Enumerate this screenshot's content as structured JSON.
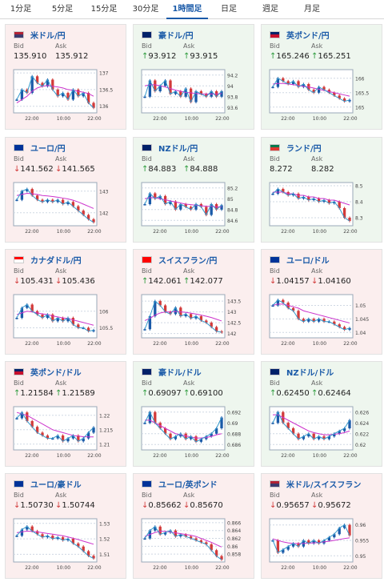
{
  "tabs": [
    "1分足",
    "5分足",
    "15分足",
    "30分足",
    "1時間足",
    "日足",
    "週足",
    "月足"
  ],
  "active_tab": 4,
  "labels": {
    "bid": "Bid",
    "ask": "Ask"
  },
  "cards": [
    {
      "pair": "米ドル/円",
      "flag": "us",
      "trend": "up",
      "bg": "down",
      "arrow": "",
      "bid": "135.910",
      "ask": "135.912",
      "chart_data": {
        "type": "line",
        "x_ticks": [
          "22:00",
          "10:00",
          "22:00"
        ],
        "y_ticks": [
          "137",
          "136.5",
          "136"
        ],
        "ylim": [
          135.8,
          137.1
        ],
        "close": [
          136.2,
          136.5,
          136.4,
          136.9,
          136.7,
          136.6,
          136.8,
          136.5,
          136.3,
          136.4,
          136.2,
          136.5,
          136.3,
          136.4,
          136.1,
          135.95
        ],
        "ma": [
          136.1,
          136.2,
          136.3,
          136.45,
          136.55,
          136.6,
          136.62,
          136.6,
          136.58,
          136.55,
          136.5,
          136.48,
          136.45,
          136.42,
          136.38,
          136.3
        ]
      }
    },
    {
      "pair": "豪ドル/円",
      "flag": "au",
      "trend": "up",
      "bg": "up",
      "arrow": "↑",
      "bid": "93.912",
      "ask": "93.915",
      "chart_data": {
        "type": "line",
        "x_ticks": [
          "22:00",
          "10:00",
          "22:00"
        ],
        "y_ticks": [
          "94.2",
          "94",
          "93.8",
          "93.6"
        ],
        "ylim": [
          93.5,
          94.3
        ],
        "close": [
          93.8,
          94.1,
          93.9,
          94.0,
          94.1,
          93.85,
          93.9,
          93.8,
          93.95,
          93.7,
          93.9,
          93.85,
          93.8,
          93.9,
          93.8,
          93.9
        ],
        "ma": [
          94.0,
          94.02,
          94.02,
          94.0,
          93.98,
          93.95,
          93.92,
          93.9,
          93.88,
          93.87,
          93.86,
          93.85,
          93.85,
          93.85,
          93.85,
          93.86
        ]
      }
    },
    {
      "pair": "英ポンド/円",
      "flag": "gb",
      "trend": "up",
      "bg": "up",
      "arrow": "↑",
      "bid": "165.246",
      "ask": "165.251",
      "chart_data": {
        "type": "line",
        "x_ticks": [
          "22:00",
          "10:00",
          "22:00"
        ],
        "y_ticks": [
          "166",
          "165.5",
          "165"
        ],
        "ylim": [
          164.8,
          166.3
        ],
        "close": [
          165.7,
          166.0,
          165.9,
          165.8,
          165.9,
          165.7,
          165.8,
          165.6,
          165.5,
          165.7,
          165.6,
          165.5,
          165.4,
          165.3,
          165.2,
          165.25
        ],
        "ma": [
          165.8,
          165.82,
          165.82,
          165.8,
          165.78,
          165.75,
          165.72,
          165.7,
          165.66,
          165.62,
          165.58,
          165.54,
          165.5,
          165.46,
          165.42,
          165.38
        ]
      }
    },
    {
      "pair": "ユーロ/円",
      "flag": "eu",
      "trend": "down",
      "bg": "down",
      "arrow": "↓",
      "bid": "141.562",
      "ask": "141.565",
      "chart_data": {
        "type": "line",
        "x_ticks": [
          "22:00",
          "10:00",
          "22:00"
        ],
        "y_ticks": [
          "143",
          "142"
        ],
        "ylim": [
          141.4,
          143.4
        ],
        "close": [
          142.6,
          143.0,
          143.1,
          142.8,
          142.6,
          142.5,
          142.6,
          142.5,
          142.6,
          142.4,
          142.5,
          142.3,
          142.1,
          141.9,
          141.7,
          141.56
        ],
        "ma": [
          142.8,
          142.85,
          142.9,
          142.88,
          142.85,
          142.8,
          142.78,
          142.75,
          142.72,
          142.68,
          142.64,
          142.58,
          142.5,
          142.4,
          142.3,
          142.2
        ]
      }
    },
    {
      "pair": "NZドル/円",
      "flag": "nz",
      "trend": "up",
      "bg": "up",
      "arrow": "↑",
      "bid": "84.883",
      "ask": "84.888",
      "chart_data": {
        "type": "line",
        "x_ticks": [
          "22:00",
          "10:00",
          "22:00"
        ],
        "y_ticks": [
          "85.2",
          "85",
          "84.8",
          "84.6"
        ],
        "ylim": [
          84.5,
          85.3
        ],
        "close": [
          84.9,
          85.1,
          85.0,
          85.05,
          84.9,
          84.95,
          84.8,
          84.9,
          84.85,
          84.8,
          84.9,
          84.85,
          84.7,
          84.9,
          84.8,
          84.88
        ],
        "ma": [
          85.0,
          85.02,
          85.02,
          85.0,
          84.98,
          84.96,
          84.94,
          84.92,
          84.9,
          84.89,
          84.88,
          84.87,
          84.86,
          84.86,
          84.85,
          84.85
        ]
      }
    },
    {
      "pair": "ランド/円",
      "flag": "za",
      "trend": "up",
      "bg": "up",
      "arrow": "",
      "bid": "8.272",
      "ask": "8.282",
      "chart_data": {
        "type": "line",
        "x_ticks": [
          "22:00",
          "10:00",
          "22:00"
        ],
        "y_ticks": [
          "8.5",
          "8.4",
          "8.3"
        ],
        "ylim": [
          8.25,
          8.52
        ],
        "close": [
          8.45,
          8.48,
          8.46,
          8.44,
          8.45,
          8.42,
          8.43,
          8.41,
          8.42,
          8.4,
          8.41,
          8.39,
          8.4,
          8.36,
          8.3,
          8.28
        ],
        "ma": [
          8.46,
          8.46,
          8.46,
          8.45,
          8.45,
          8.44,
          8.44,
          8.43,
          8.43,
          8.42,
          8.42,
          8.41,
          8.41,
          8.4,
          8.39,
          8.38
        ]
      }
    },
    {
      "pair": "カナダドル/円",
      "flag": "ca",
      "trend": "down",
      "bg": "down",
      "arrow": "↓",
      "bid": "105.431",
      "ask": "105.436",
      "chart_data": {
        "type": "line",
        "x_ticks": [
          "22:00",
          "10:00",
          "22:00"
        ],
        "y_ticks": [
          "106",
          "105.5"
        ],
        "ylim": [
          105.2,
          106.5
        ],
        "close": [
          105.8,
          106.1,
          106.2,
          106.0,
          105.9,
          105.8,
          105.9,
          105.7,
          105.8,
          105.7,
          105.8,
          105.6,
          105.5,
          105.5,
          105.4,
          105.43
        ],
        "ma": [
          105.9,
          105.95,
          106.0,
          105.98,
          105.95,
          105.92,
          105.9,
          105.86,
          105.83,
          105.8,
          105.78,
          105.74,
          105.7,
          105.66,
          105.62,
          105.58
        ]
      }
    },
    {
      "pair": "スイスフラン/円",
      "flag": "ch",
      "trend": "up",
      "bg": "down",
      "arrow": "↑",
      "bid": "142.061",
      "ask": "142.077",
      "chart_data": {
        "type": "line",
        "x_ticks": [
          "22:00",
          "10:00",
          "22:00"
        ],
        "y_ticks": [
          "143.5",
          "143",
          "142.5",
          "142"
        ],
        "ylim": [
          141.8,
          143.8
        ],
        "close": [
          142.2,
          142.8,
          143.5,
          143.3,
          143.0,
          142.9,
          143.2,
          142.8,
          142.9,
          142.7,
          142.8,
          142.6,
          142.5,
          142.3,
          142.1,
          142.06
        ],
        "ma": [
          142.6,
          142.7,
          142.85,
          142.95,
          143.0,
          143.0,
          143.02,
          143.0,
          142.98,
          142.94,
          142.9,
          142.85,
          142.8,
          142.74,
          142.66,
          142.58
        ]
      }
    },
    {
      "pair": "ユーロ/ドル",
      "flag": "eu",
      "trend": "down",
      "bg": "down",
      "arrow": "↓",
      "bid": "1.04157",
      "ask": "1.04160",
      "chart_data": {
        "type": "line",
        "x_ticks": [
          "22:00",
          "10:00",
          "22:00"
        ],
        "y_ticks": [
          "1.05",
          "1.045",
          "1.04"
        ],
        "ylim": [
          1.038,
          1.054
        ],
        "close": [
          1.05,
          1.052,
          1.051,
          1.049,
          1.048,
          1.045,
          1.044,
          1.045,
          1.044,
          1.045,
          1.044,
          1.044,
          1.043,
          1.042,
          1.041,
          1.0416
        ],
        "ma": [
          1.05,
          1.0505,
          1.0505,
          1.05,
          1.0495,
          1.049,
          1.048,
          1.0475,
          1.047,
          1.0465,
          1.046,
          1.0455,
          1.045,
          1.0445,
          1.044,
          1.0435
        ]
      }
    },
    {
      "pair": "英ポンド/ドル",
      "flag": "gb",
      "trend": "up",
      "bg": "down",
      "arrow": "↑",
      "bid": "1.21584",
      "ask": "1.21589",
      "chart_data": {
        "type": "line",
        "x_ticks": [
          "22:00",
          "10:00",
          "22:00"
        ],
        "y_ticks": [
          "1.22",
          "1.215",
          "1.21"
        ],
        "ylim": [
          1.208,
          1.223
        ],
        "close": [
          1.219,
          1.221,
          1.218,
          1.216,
          1.214,
          1.213,
          1.212,
          1.212,
          1.213,
          1.211,
          1.212,
          1.213,
          1.211,
          1.212,
          1.214,
          1.2158
        ],
        "ma": [
          1.221,
          1.2205,
          1.22,
          1.219,
          1.218,
          1.217,
          1.216,
          1.215,
          1.2145,
          1.214,
          1.2135,
          1.213,
          1.2128,
          1.2126,
          1.2125,
          1.2125
        ]
      }
    },
    {
      "pair": "豪ドル/ドル",
      "flag": "au",
      "trend": "up",
      "bg": "up",
      "arrow": "↑",
      "bid": "0.69097",
      "ask": "0.69100",
      "chart_data": {
        "type": "line",
        "x_ticks": [
          "22:00",
          "10:00",
          "22:00"
        ],
        "y_ticks": [
          "0.692",
          "0.69",
          "0.688",
          "0.686"
        ],
        "ylim": [
          0.685,
          0.693
        ],
        "close": [
          0.69,
          0.692,
          0.69,
          0.689,
          0.688,
          0.687,
          0.6875,
          0.688,
          0.687,
          0.6875,
          0.6865,
          0.687,
          0.6875,
          0.688,
          0.689,
          0.691
        ],
        "ma": [
          0.6905,
          0.6905,
          0.69,
          0.6895,
          0.689,
          0.6885,
          0.688,
          0.6878,
          0.6876,
          0.6874,
          0.6872,
          0.6872,
          0.6873,
          0.6875,
          0.6878,
          0.688
        ]
      }
    },
    {
      "pair": "NZドル/ドル",
      "flag": "nz",
      "trend": "up",
      "bg": "up",
      "arrow": "↑",
      "bid": "0.62450",
      "ask": "0.62464",
      "chart_data": {
        "type": "line",
        "x_ticks": [
          "22:00",
          "10:00",
          "22:00"
        ],
        "y_ticks": [
          "0.626",
          "0.624",
          "0.622",
          "0.62"
        ],
        "ylim": [
          0.619,
          0.627
        ],
        "close": [
          0.624,
          0.626,
          0.624,
          0.623,
          0.622,
          0.621,
          0.6215,
          0.622,
          0.621,
          0.6215,
          0.621,
          0.6215,
          0.622,
          0.6225,
          0.623,
          0.6245
        ],
        "ma": [
          0.6255,
          0.6255,
          0.625,
          0.6245,
          0.624,
          0.6235,
          0.623,
          0.6225,
          0.6222,
          0.622,
          0.6218,
          0.6218,
          0.6219,
          0.622,
          0.6222,
          0.6225
        ]
      }
    },
    {
      "pair": "ユーロ/豪ドル",
      "flag": "eu",
      "trend": "down",
      "bg": "down",
      "arrow": "↓",
      "bid": "1.50730",
      "ask": "1.50744",
      "chart_data": {
        "type": "line",
        "x_ticks": [
          "22:00",
          "10:00",
          "22:00"
        ],
        "y_ticks": [
          "1.53",
          "1.52",
          "1.51"
        ],
        "ylim": [
          1.505,
          1.533
        ],
        "close": [
          1.522,
          1.526,
          1.528,
          1.525,
          1.523,
          1.521,
          1.522,
          1.52,
          1.521,
          1.519,
          1.52,
          1.517,
          1.515,
          1.512,
          1.509,
          1.5073
        ],
        "ma": [
          1.524,
          1.5245,
          1.525,
          1.5248,
          1.5245,
          1.524,
          1.5235,
          1.523,
          1.5225,
          1.522,
          1.5212,
          1.5204,
          1.5195,
          1.5185,
          1.5175,
          1.5165
        ]
      }
    },
    {
      "pair": "ユーロ/英ポンド",
      "flag": "eu",
      "trend": "down",
      "bg": "down",
      "arrow": "↓",
      "bid": "0.85662",
      "ask": "0.85670",
      "chart_data": {
        "type": "line",
        "x_ticks": [
          "22:00",
          "10:00",
          "22:00"
        ],
        "y_ticks": [
          "0.866",
          "0.864",
          "0.862",
          "0.86",
          "0.858"
        ],
        "ylim": [
          0.856,
          0.867
        ],
        "close": [
          0.862,
          0.864,
          0.865,
          0.863,
          0.8635,
          0.864,
          0.8625,
          0.863,
          0.8625,
          0.862,
          0.8615,
          0.861,
          0.8605,
          0.859,
          0.8575,
          0.8566
        ],
        "ma": [
          0.8625,
          0.863,
          0.8635,
          0.8638,
          0.8638,
          0.8636,
          0.8634,
          0.8632,
          0.863,
          0.8628,
          0.8625,
          0.862,
          0.8615,
          0.861,
          0.8604,
          0.8598
        ]
      }
    },
    {
      "pair": "米ドル/スイスフラン",
      "flag": "us",
      "trend": "down",
      "bg": "down",
      "arrow": "↓",
      "bid": "0.95657",
      "ask": "0.95672",
      "chart_data": {
        "type": "line",
        "x_ticks": [
          "22:00",
          "10:00",
          "22:00"
        ],
        "y_ticks": [
          "0.96",
          "0.955",
          "0.95"
        ],
        "ylim": [
          0.948,
          0.962
        ],
        "close": [
          0.955,
          0.951,
          0.952,
          0.953,
          0.954,
          0.953,
          0.955,
          0.954,
          0.955,
          0.954,
          0.955,
          0.956,
          0.957,
          0.959,
          0.96,
          0.9566
        ],
        "ma": [
          0.9555,
          0.955,
          0.9545,
          0.9542,
          0.954,
          0.954,
          0.954,
          0.9541,
          0.9542,
          0.9543,
          0.9545,
          0.9547,
          0.955,
          0.9553,
          0.9556,
          0.9558
        ]
      }
    }
  ],
  "colors": {
    "up_candle": "#1a5aa8",
    "down_candle": "#d23a3a",
    "ma_line": "#cc33cc",
    "price_line": "#3399cc",
    "grid": "#cfd8e3"
  },
  "flags": {
    "us": [
      "#b22234",
      "#3c3b6e"
    ],
    "au": [
      "#012169",
      "#012169"
    ],
    "gb": [
      "#012169",
      "#c8102e"
    ],
    "eu": [
      "#003399",
      "#003399"
    ],
    "nz": [
      "#012169",
      "#012169"
    ],
    "za": [
      "#007a4d",
      "#de3831"
    ],
    "ca": [
      "#ff0000",
      "#ffffff"
    ],
    "ch": [
      "#ff0000",
      "#ff0000"
    ]
  }
}
